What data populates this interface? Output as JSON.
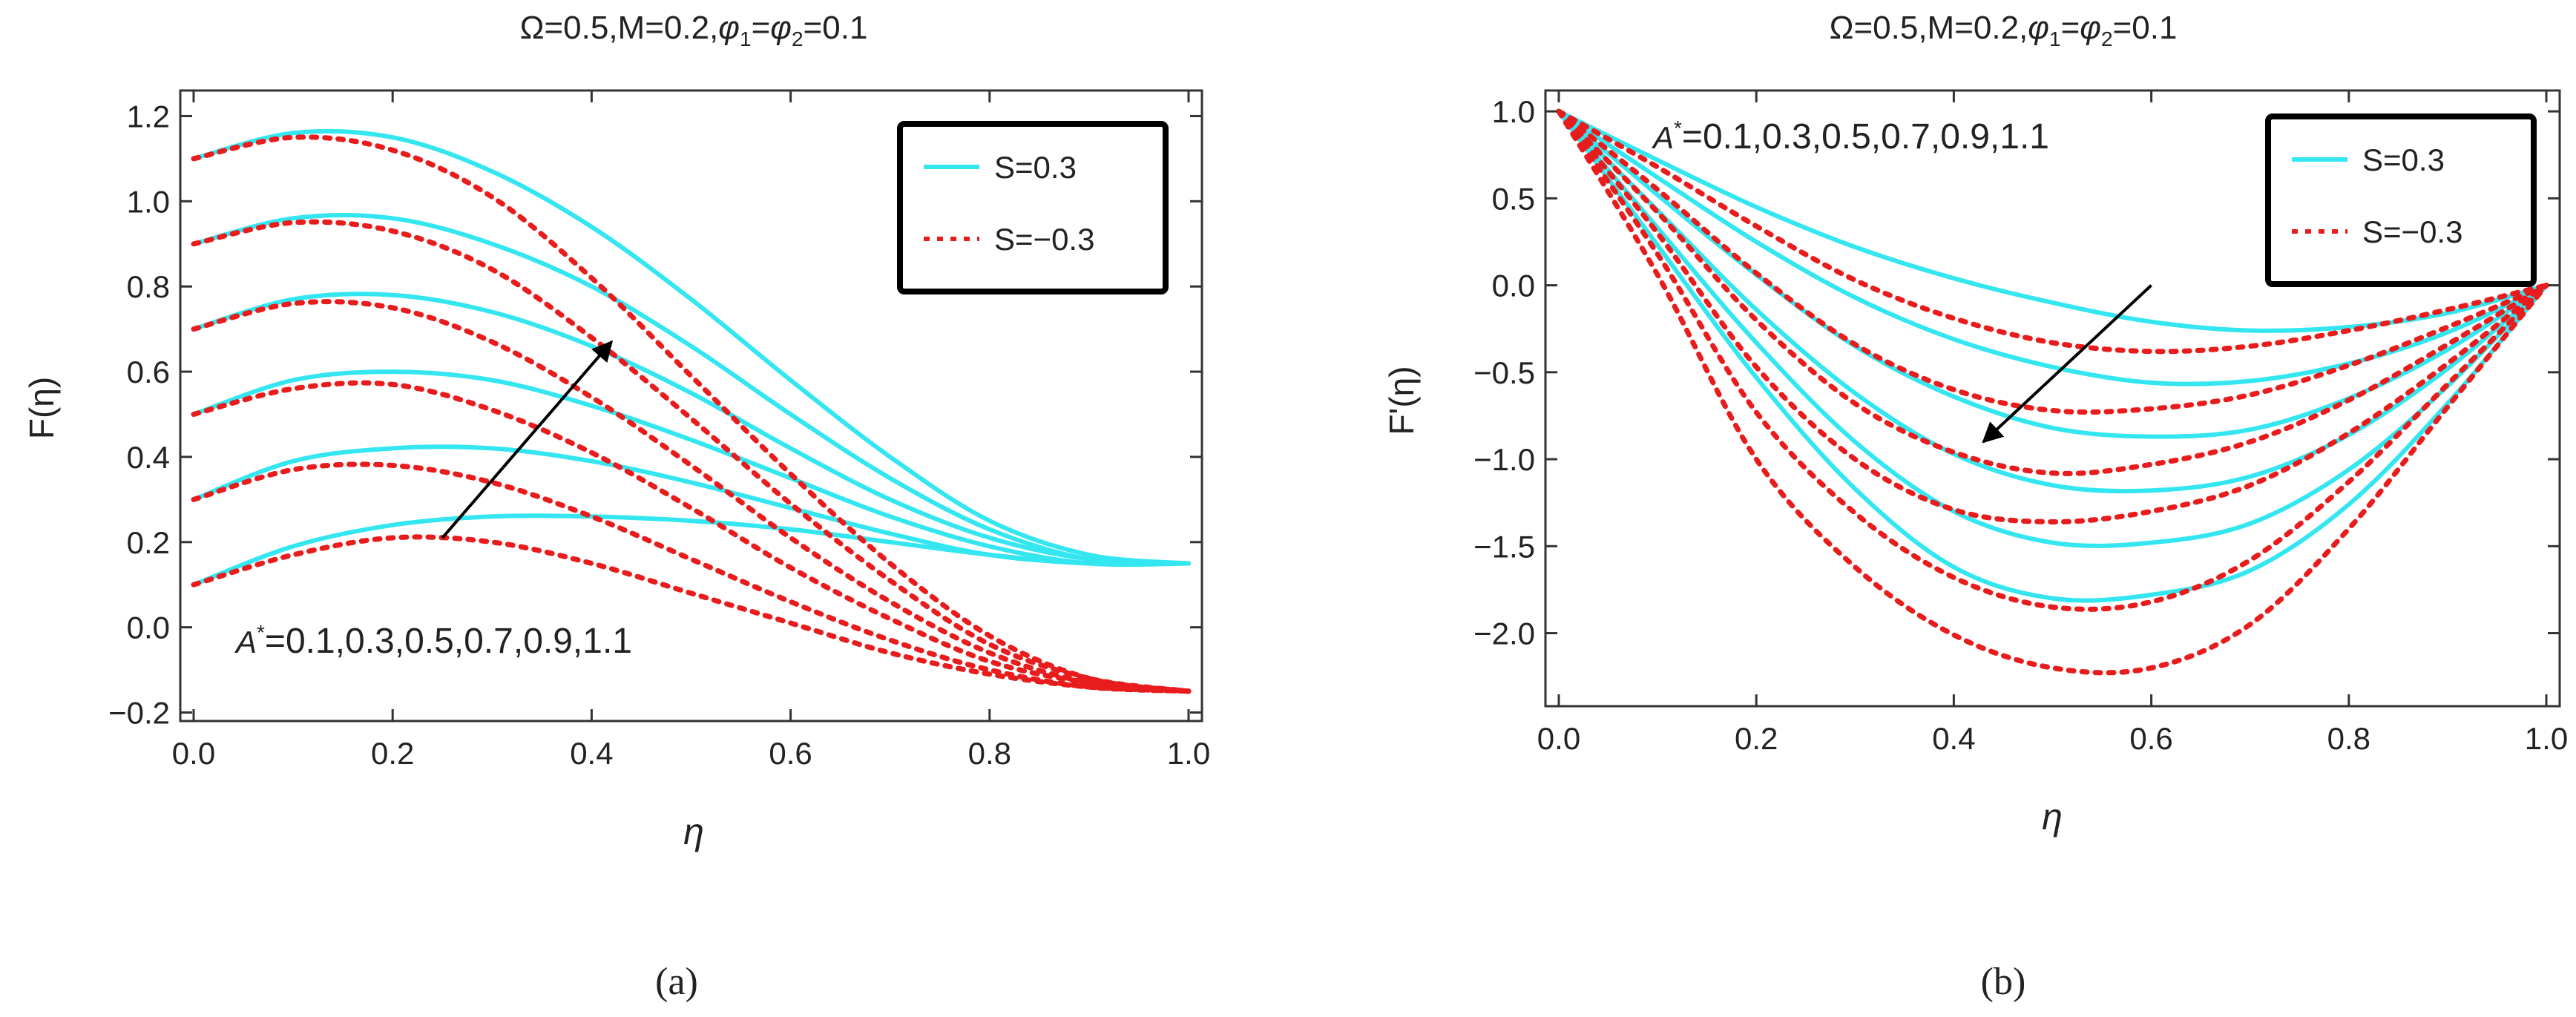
{
  "colors": {
    "solid": "#33e6f0",
    "dashed": "#e81c1c",
    "axis": "#333333",
    "arrow": "#000000"
  },
  "chart_data": [
    {
      "id": "a",
      "type": "line",
      "title": "Ω=0.5,M=0.2,φ1=φ2=0.1",
      "title_parts": {
        "p1": "Ω=0.5,M=0.2,",
        "phi": "φ",
        "sub1": "1",
        "eq": "=",
        "phi2": "φ",
        "sub2": "2",
        "tail": "=0.1"
      },
      "xlabel": "η",
      "ylabel": "F(η)",
      "xlim": [
        0,
        1
      ],
      "ylim": [
        -0.22,
        1.26
      ],
      "xticks": [
        0.0,
        0.2,
        0.4,
        0.6,
        0.8,
        1.0
      ],
      "xtick_labels": [
        "0.0",
        "0.2",
        "0.4",
        "0.6",
        "0.8",
        "1.0"
      ],
      "yticks": [
        -0.2,
        0.0,
        0.2,
        0.4,
        0.6,
        0.8,
        1.0,
        1.2
      ],
      "ytick_labels": [
        "−0.2",
        "0.0",
        "0.2",
        "0.4",
        "0.6",
        "0.8",
        "1.0",
        "1.2"
      ],
      "legend": {
        "placement": "top-right",
        "entries": [
          "S=0.3",
          "S=−0.3"
        ]
      },
      "annotation": {
        "sym": "A",
        "sup": "*",
        "text": "=0.1,0.3,0.5,0.7,0.9,1.1",
        "arrow_from": [
          0.25,
          0.21
        ],
        "arrow_to": [
          0.42,
          0.67
        ]
      },
      "A_values": [
        0.1,
        0.3,
        0.5,
        0.7,
        0.9,
        1.1
      ],
      "series": [
        {
          "name": "S=0.3",
          "style": "solid",
          "A": 0.1,
          "x": [
            0,
            0.1,
            0.2,
            0.3,
            0.4,
            0.5,
            0.6,
            0.7,
            0.8,
            0.9,
            1.0
          ],
          "y": [
            0.1,
            0.19,
            0.24,
            0.26,
            0.26,
            0.25,
            0.23,
            0.2,
            0.17,
            0.15,
            0.15
          ]
        },
        {
          "name": "S=0.3",
          "style": "solid",
          "A": 0.3,
          "x": [
            0,
            0.1,
            0.2,
            0.3,
            0.4,
            0.5,
            0.6,
            0.7,
            0.8,
            0.9,
            1.0
          ],
          "y": [
            0.3,
            0.39,
            0.42,
            0.42,
            0.39,
            0.34,
            0.28,
            0.22,
            0.17,
            0.15,
            0.15
          ]
        },
        {
          "name": "S=0.3",
          "style": "solid",
          "A": 0.5,
          "x": [
            0,
            0.1,
            0.2,
            0.3,
            0.4,
            0.5,
            0.6,
            0.7,
            0.8,
            0.9,
            1.0
          ],
          "y": [
            0.5,
            0.58,
            0.6,
            0.58,
            0.52,
            0.44,
            0.35,
            0.26,
            0.19,
            0.15,
            0.15
          ]
        },
        {
          "name": "S=0.3",
          "style": "solid",
          "A": 0.7,
          "x": [
            0,
            0.1,
            0.2,
            0.3,
            0.4,
            0.5,
            0.6,
            0.7,
            0.8,
            0.9,
            1.0
          ],
          "y": [
            0.7,
            0.77,
            0.78,
            0.74,
            0.66,
            0.55,
            0.42,
            0.3,
            0.21,
            0.16,
            0.15
          ]
        },
        {
          "name": "S=0.3",
          "style": "solid",
          "A": 0.9,
          "x": [
            0,
            0.1,
            0.2,
            0.3,
            0.4,
            0.5,
            0.6,
            0.7,
            0.8,
            0.9,
            1.0
          ],
          "y": [
            0.9,
            0.96,
            0.96,
            0.9,
            0.8,
            0.66,
            0.5,
            0.35,
            0.23,
            0.16,
            0.15
          ]
        },
        {
          "name": "S=0.3",
          "style": "solid",
          "A": 1.1,
          "x": [
            0,
            0.1,
            0.2,
            0.3,
            0.4,
            0.5,
            0.6,
            0.7,
            0.8,
            0.9,
            1.0
          ],
          "y": [
            1.1,
            1.16,
            1.15,
            1.07,
            0.94,
            0.77,
            0.58,
            0.4,
            0.25,
            0.17,
            0.15
          ]
        },
        {
          "name": "S=−0.3",
          "style": "dashed",
          "A": 0.1,
          "x": [
            0,
            0.1,
            0.2,
            0.3,
            0.4,
            0.5,
            0.6,
            0.7,
            0.8,
            0.9,
            1.0
          ],
          "y": [
            0.1,
            0.17,
            0.21,
            0.2,
            0.15,
            0.08,
            0.01,
            -0.06,
            -0.11,
            -0.14,
            -0.15
          ]
        },
        {
          "name": "S=−0.3",
          "style": "dashed",
          "A": 0.3,
          "x": [
            0,
            0.1,
            0.2,
            0.3,
            0.4,
            0.5,
            0.6,
            0.7,
            0.8,
            0.9,
            1.0
          ],
          "y": [
            0.3,
            0.37,
            0.38,
            0.34,
            0.26,
            0.16,
            0.06,
            -0.03,
            -0.1,
            -0.14,
            -0.15
          ]
        },
        {
          "name": "S=−0.3",
          "style": "dashed",
          "A": 0.5,
          "x": [
            0,
            0.1,
            0.2,
            0.3,
            0.4,
            0.5,
            0.6,
            0.7,
            0.8,
            0.9,
            1.0
          ],
          "y": [
            0.5,
            0.56,
            0.57,
            0.51,
            0.41,
            0.28,
            0.14,
            0.02,
            -0.08,
            -0.13,
            -0.15
          ]
        },
        {
          "name": "S=−0.3",
          "style": "dashed",
          "A": 0.7,
          "x": [
            0,
            0.1,
            0.2,
            0.3,
            0.4,
            0.5,
            0.6,
            0.7,
            0.8,
            0.9,
            1.0
          ],
          "y": [
            0.7,
            0.76,
            0.75,
            0.67,
            0.54,
            0.38,
            0.21,
            0.06,
            -0.06,
            -0.13,
            -0.15
          ]
        },
        {
          "name": "S=−0.3",
          "style": "dashed",
          "A": 0.9,
          "x": [
            0,
            0.1,
            0.2,
            0.3,
            0.4,
            0.5,
            0.6,
            0.7,
            0.8,
            0.9,
            1.0
          ],
          "y": [
            0.9,
            0.95,
            0.93,
            0.84,
            0.68,
            0.49,
            0.29,
            0.11,
            -0.04,
            -0.12,
            -0.15
          ]
        },
        {
          "name": "S=−0.3",
          "style": "dashed",
          "A": 1.1,
          "x": [
            0,
            0.1,
            0.2,
            0.3,
            0.4,
            0.5,
            0.6,
            0.7,
            0.8,
            0.9,
            1.0
          ],
          "y": [
            1.1,
            1.15,
            1.12,
            1.01,
            0.82,
            0.59,
            0.36,
            0.15,
            -0.02,
            -0.12,
            -0.15
          ]
        }
      ]
    },
    {
      "id": "b",
      "type": "line",
      "title": "Ω=0.5,M=0.2,φ1=φ2=0.1",
      "title_parts": {
        "p1": "Ω=0.5,M=0.2,",
        "phi": "φ",
        "sub1": "1",
        "eq": "=",
        "phi2": "φ",
        "sub2": "2",
        "tail": "=0.1"
      },
      "xlabel": "η",
      "ylabel": "F'(η)",
      "xlim": [
        0,
        1
      ],
      "ylim": [
        -2.42,
        1.12
      ],
      "xticks": [
        0.0,
        0.2,
        0.4,
        0.6,
        0.8,
        1.0
      ],
      "xtick_labels": [
        "0.0",
        "0.2",
        "0.4",
        "0.6",
        "0.8",
        "1.0"
      ],
      "yticks": [
        -2.0,
        -1.5,
        -1.0,
        -0.5,
        0.0,
        0.5,
        1.0
      ],
      "ytick_labels": [
        "−2.0",
        "−1.5",
        "−1.0",
        "−0.5",
        "0.0",
        "0.5",
        "1.0"
      ],
      "legend": {
        "placement": "top-right",
        "entries": [
          "S=0.3",
          "S=−0.3"
        ]
      },
      "annotation": {
        "sym": "A",
        "sup": "*",
        "text": "=0.1,0.3,0.5,0.7,0.9,1.1",
        "arrow_from": [
          0.6,
          0.0
        ],
        "arrow_to": [
          0.43,
          -0.9
        ]
      },
      "A_values": [
        0.1,
        0.3,
        0.5,
        0.7,
        0.9,
        1.1
      ],
      "series": [
        {
          "name": "S=0.3",
          "style": "solid",
          "A": 0.1,
          "x": [
            0,
            0.1,
            0.2,
            0.3,
            0.4,
            0.5,
            0.6,
            0.7,
            0.8,
            0.9,
            1.0
          ],
          "y": [
            1.0,
            0.72,
            0.45,
            0.22,
            0.04,
            -0.1,
            -0.21,
            -0.26,
            -0.24,
            -0.16,
            0.0
          ]
        },
        {
          "name": "S=0.3",
          "style": "solid",
          "A": 0.3,
          "x": [
            0,
            0.1,
            0.2,
            0.3,
            0.4,
            0.5,
            0.6,
            0.7,
            0.8,
            0.9,
            1.0
          ],
          "y": [
            1.0,
            0.62,
            0.25,
            -0.07,
            -0.31,
            -0.47,
            -0.56,
            -0.55,
            -0.45,
            -0.27,
            0.0
          ]
        },
        {
          "name": "S=0.3",
          "style": "solid",
          "A": 0.5,
          "x": [
            0,
            0.1,
            0.2,
            0.3,
            0.4,
            0.5,
            0.6,
            0.7,
            0.8,
            0.9,
            1.0
          ],
          "y": [
            1.0,
            0.52,
            0.06,
            -0.35,
            -0.64,
            -0.82,
            -0.87,
            -0.83,
            -0.65,
            -0.37,
            0.0
          ]
        },
        {
          "name": "S=0.3",
          "style": "solid",
          "A": 0.7,
          "x": [
            0,
            0.1,
            0.2,
            0.3,
            0.4,
            0.5,
            0.6,
            0.7,
            0.8,
            0.9,
            1.0
          ],
          "y": [
            1.0,
            0.43,
            -0.14,
            -0.62,
            -0.97,
            -1.15,
            -1.18,
            -1.1,
            -0.86,
            -0.48,
            0.0
          ]
        },
        {
          "name": "S=0.3",
          "style": "solid",
          "A": 0.9,
          "x": [
            0,
            0.1,
            0.2,
            0.3,
            0.4,
            0.5,
            0.6,
            0.7,
            0.8,
            0.9,
            1.0
          ],
          "y": [
            1.0,
            0.33,
            -0.33,
            -0.9,
            -1.3,
            -1.48,
            -1.48,
            -1.37,
            -1.06,
            -0.58,
            0.0
          ]
        },
        {
          "name": "S=0.3",
          "style": "solid",
          "A": 1.1,
          "x": [
            0,
            0.1,
            0.2,
            0.3,
            0.4,
            0.5,
            0.6,
            0.7,
            0.8,
            0.9,
            1.0
          ],
          "y": [
            1.0,
            0.23,
            -0.53,
            -1.17,
            -1.62,
            -1.8,
            -1.78,
            -1.64,
            -1.26,
            -0.68,
            0.0
          ]
        },
        {
          "name": "S=−0.3",
          "style": "dashed",
          "A": 0.1,
          "x": [
            0,
            0.1,
            0.2,
            0.3,
            0.4,
            0.5,
            0.6,
            0.7,
            0.8,
            0.9,
            1.0
          ],
          "y": [
            1.0,
            0.68,
            0.34,
            0.03,
            -0.19,
            -0.33,
            -0.38,
            -0.35,
            -0.26,
            -0.14,
            0.0
          ]
        },
        {
          "name": "S=−0.3",
          "style": "dashed",
          "A": 0.3,
          "x": [
            0,
            0.1,
            0.2,
            0.3,
            0.4,
            0.5,
            0.6,
            0.7,
            0.8,
            0.9,
            1.0
          ],
          "y": [
            1.0,
            0.55,
            0.07,
            -0.34,
            -0.6,
            -0.72,
            -0.71,
            -0.63,
            -0.46,
            -0.24,
            0.0
          ]
        },
        {
          "name": "S=−0.3",
          "style": "dashed",
          "A": 0.5,
          "x": [
            0,
            0.1,
            0.2,
            0.3,
            0.4,
            0.5,
            0.6,
            0.7,
            0.8,
            0.9,
            1.0
          ],
          "y": [
            1.0,
            0.42,
            -0.2,
            -0.68,
            -0.96,
            -1.08,
            -1.03,
            -0.9,
            -0.66,
            -0.34,
            0.0
          ]
        },
        {
          "name": "S=−0.3",
          "style": "dashed",
          "A": 0.7,
          "x": [
            0,
            0.1,
            0.2,
            0.3,
            0.4,
            0.5,
            0.6,
            0.7,
            0.8,
            0.9,
            1.0
          ],
          "y": [
            1.0,
            0.3,
            -0.47,
            -1.0,
            -1.29,
            -1.36,
            -1.3,
            -1.15,
            -0.85,
            -0.45,
            0.0
          ]
        },
        {
          "name": "S=−0.3",
          "style": "dashed",
          "A": 0.9,
          "x": [
            0,
            0.1,
            0.2,
            0.3,
            0.4,
            0.5,
            0.6,
            0.7,
            0.8,
            0.9,
            1.0
          ],
          "y": [
            1.0,
            0.18,
            -0.73,
            -1.31,
            -1.68,
            -1.85,
            -1.82,
            -1.58,
            -1.13,
            -0.57,
            0.0
          ]
        },
        {
          "name": "S=−0.3",
          "style": "dashed",
          "A": 1.1,
          "x": [
            0,
            0.1,
            0.2,
            0.3,
            0.4,
            0.5,
            0.6,
            0.7,
            0.8,
            0.9,
            1.0
          ],
          "y": [
            1.0,
            0.06,
            -1.0,
            -1.62,
            -2.01,
            -2.2,
            -2.2,
            -1.95,
            -1.4,
            -0.7,
            0.0
          ]
        }
      ]
    }
  ],
  "captions": [
    "(a)",
    "(b)"
  ]
}
